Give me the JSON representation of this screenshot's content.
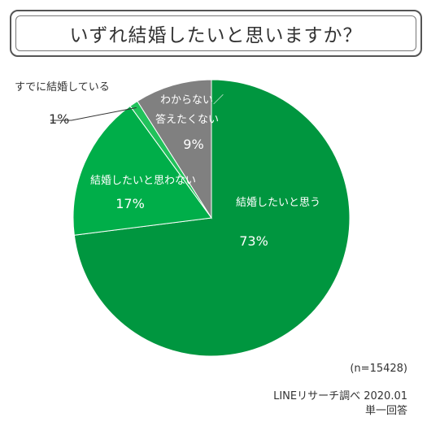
{
  "title": "いずれ結婚したいと思いますか？",
  "chart_data": {
    "type": "pie",
    "title": "いずれ結婚したいと思いますか？",
    "start_angle_deg": 0,
    "direction": "clockwise",
    "slices": [
      {
        "label": "結婚したいと思う",
        "value": 73,
        "value_label": "73%",
        "color": "#00963f"
      },
      {
        "label": "結婚したいと思わない",
        "value": 17,
        "value_label": "17%",
        "color": "#00ae49"
      },
      {
        "label": "すでに結婚している",
        "value": 1,
        "value_label": "1%",
        "color": "#21c25b"
      },
      {
        "label": "わからない／答えたくない",
        "value": 9,
        "value_label": "9%",
        "color": "#808080"
      }
    ]
  },
  "footer": {
    "sample": "(n=15428)",
    "source": "LINEリサーチ調べ 2020.01",
    "note": "単一回答"
  }
}
